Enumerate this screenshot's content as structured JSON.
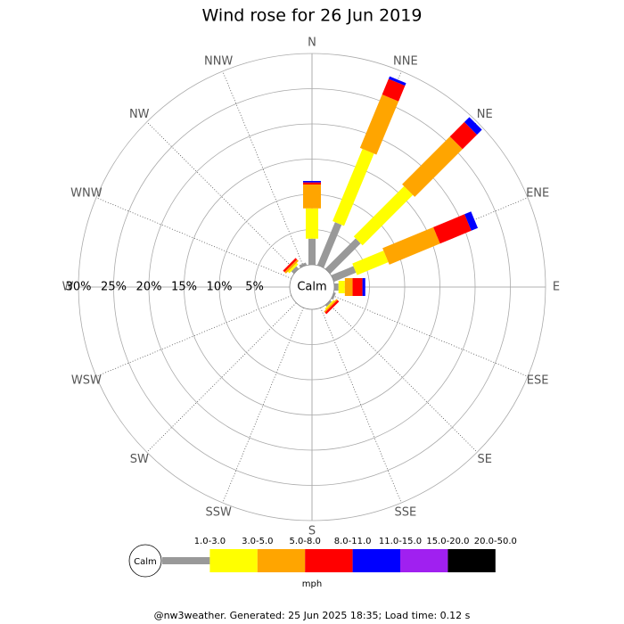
{
  "chart_data": {
    "type": "windrose",
    "title": "Wind rose for 26 Jun 2019",
    "directions": [
      "N",
      "NNE",
      "NE",
      "ENE",
      "E",
      "ESE",
      "SE",
      "SSE",
      "S",
      "SSW",
      "SW",
      "WSW",
      "W",
      "WNW",
      "NW",
      "NNW"
    ],
    "calm_label": "Calm",
    "units": "mph",
    "rlim": [
      0,
      30
    ],
    "rticks": [
      {
        "value": 5,
        "label": "5%"
      },
      {
        "value": 10,
        "label": "10%"
      },
      {
        "value": 15,
        "label": "15%"
      },
      {
        "value": 20,
        "label": "20%"
      },
      {
        "value": 25,
        "label": "25%"
      },
      {
        "value": 30,
        "label": "30%"
      }
    ],
    "series": [
      {
        "name": "1.0-3.0",
        "color": "#999999",
        "values": [
          3.7,
          6.6,
          6.1,
          3.4,
          0.6,
          0.3,
          0.3,
          0,
          0,
          0,
          0,
          0,
          0,
          0,
          0.5,
          0.4
        ]
      },
      {
        "name": "3.0-5.0",
        "color": "#ffff00",
        "values": [
          4.3,
          11.1,
          10.1,
          4.8,
          0.9,
          0,
          0.2,
          0,
          0,
          0,
          0,
          0,
          0,
          0,
          0.3,
          0
        ]
      },
      {
        "name": "5.0-8.0",
        "color": "#ffa500",
        "values": [
          3.4,
          8.2,
          9.6,
          7.8,
          1.1,
          0,
          0.2,
          0,
          0,
          0,
          0,
          0,
          0,
          0,
          0.3,
          0
        ]
      },
      {
        "name": "8.0-11.0",
        "color": "#ff0000",
        "values": [
          0.3,
          2.4,
          2.9,
          4.8,
          1.4,
          0,
          0.3,
          0,
          0,
          0,
          0,
          0,
          0,
          0,
          0.3,
          0
        ]
      },
      {
        "name": "11.0-15.0",
        "color": "#0000ff",
        "values": [
          0.2,
          0.4,
          1.0,
          1.0,
          0.4,
          0,
          0,
          0,
          0,
          0,
          0,
          0,
          0,
          0,
          0,
          0
        ]
      },
      {
        "name": "15.0-20.0",
        "color": "#a020f0",
        "values": [
          0,
          0,
          0,
          0,
          0,
          0,
          0,
          0,
          0,
          0,
          0,
          0,
          0,
          0,
          0,
          0
        ]
      },
      {
        "name": "20.0-50.0",
        "color": "#000000",
        "values": [
          0,
          0,
          0,
          0,
          0,
          0,
          0,
          0,
          0,
          0,
          0,
          0,
          0,
          0,
          0,
          0
        ]
      }
    ]
  },
  "footer": "@nw3weather. Generated: 25 Jun 2025 18:35; Load time: 0.12 s"
}
